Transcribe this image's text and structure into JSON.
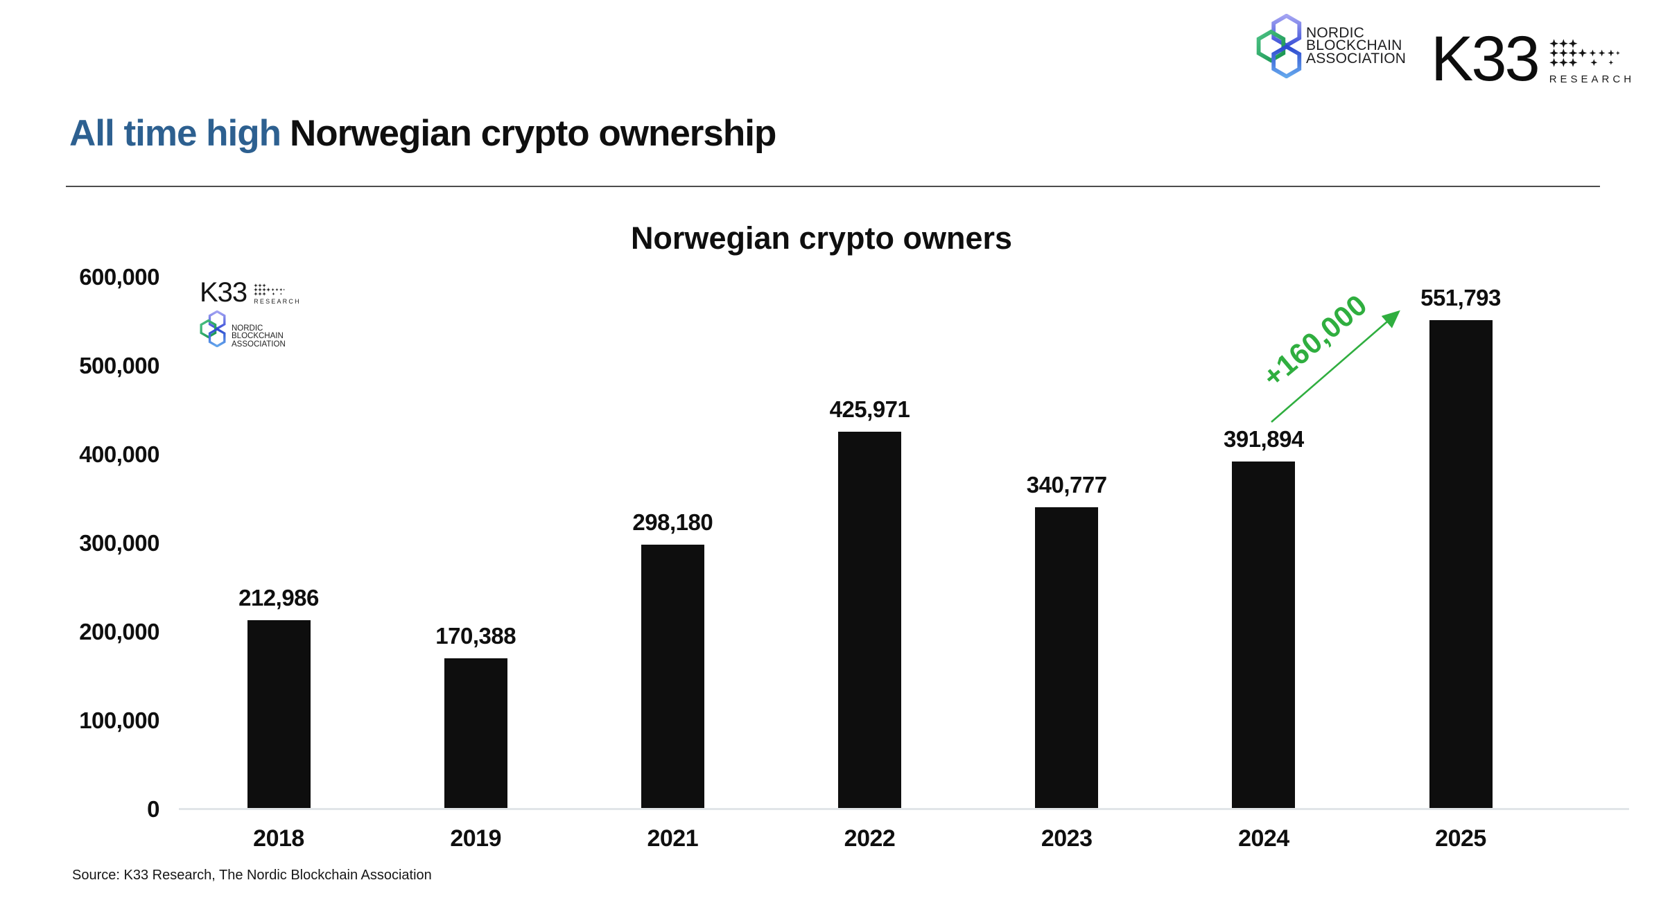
{
  "page": {
    "title_highlight": "All time high",
    "title_rest": "Norwegian crypto ownership",
    "source": "Source: K33 Research, The Nordic Blockchain Association"
  },
  "logos": {
    "nordic_blockchain": {
      "lines": [
        "NORDIC",
        "BLOCKCHAIN",
        "ASSOCIATION"
      ]
    },
    "k33": {
      "wordmark": "K33",
      "sub_label": "RESEARCH"
    }
  },
  "colors": {
    "title_accent_blue": "#2d6090",
    "annotation_green": "#2fae3f",
    "bar_black": "#0e0e0e",
    "axis_line_gray": "#e1e5e8"
  },
  "chart_data": {
    "type": "bar",
    "title": "Norwegian crypto owners",
    "categories": [
      "2018",
      "2019",
      "2021",
      "2022",
      "2023",
      "2024",
      "2025"
    ],
    "values": [
      212986,
      170388,
      298180,
      425971,
      340777,
      391894,
      551793
    ],
    "value_labels": [
      "212,986",
      "170,388",
      "298,180",
      "425,971",
      "340,777",
      "391,894",
      "551,793"
    ],
    "xlabel": "",
    "ylabel": "",
    "ylim": [
      0,
      600000
    ],
    "yticks": [
      0,
      100000,
      200000,
      300000,
      400000,
      500000,
      600000
    ],
    "ytick_labels": [
      "0",
      "100,000",
      "200,000",
      "300,000",
      "400,000",
      "500,000",
      "600,000"
    ],
    "grid": false,
    "legend": null,
    "bar_color": "#0e0e0e",
    "annotation": {
      "text": "+160,000",
      "color": "#2fae3f",
      "from_year": "2024",
      "to_year": "2025"
    }
  }
}
